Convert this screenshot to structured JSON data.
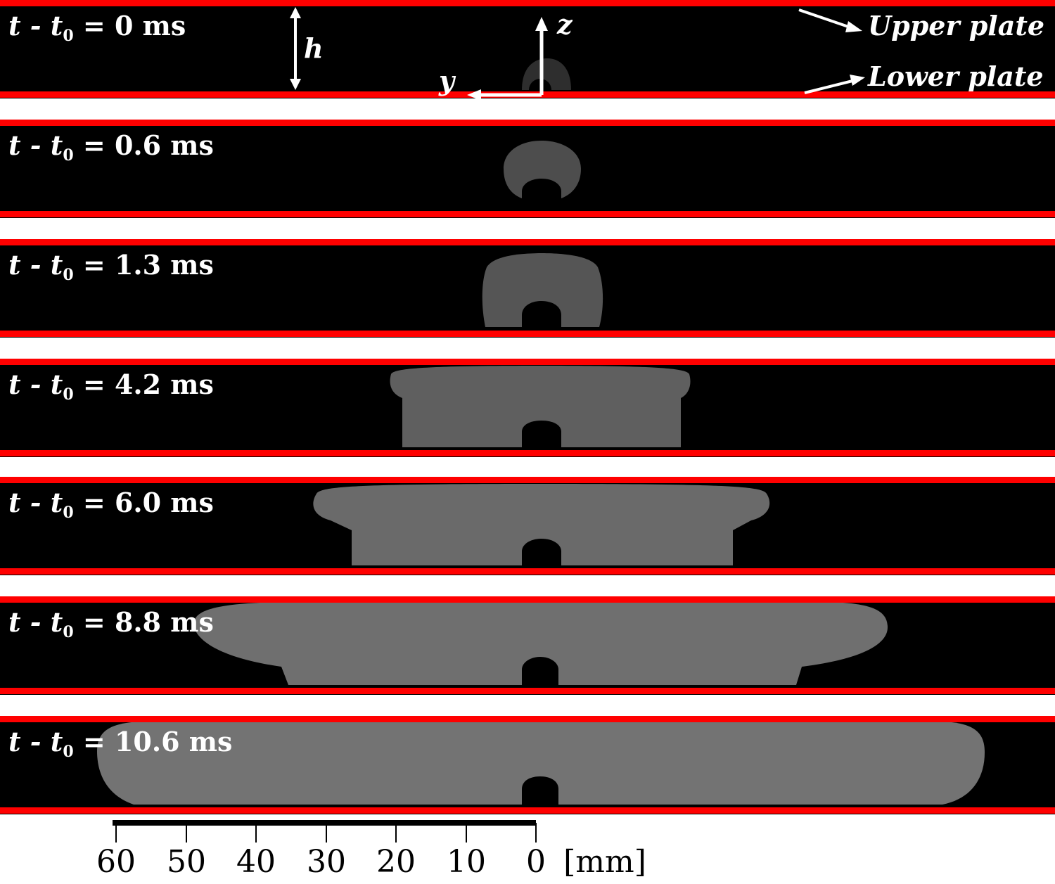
{
  "frames": [
    {
      "t_label": "t - t",
      "sub": "0",
      "value": "= 0 ms"
    },
    {
      "t_label": "t - t",
      "sub": "0",
      "value": "= 0.6 ms"
    },
    {
      "t_label": "t - t",
      "sub": "0",
      "value": "= 1.3 ms"
    },
    {
      "t_label": "t - t",
      "sub": "0",
      "value": "= 4.2 ms"
    },
    {
      "t_label": "t - t",
      "sub": "0",
      "value": "= 6.0 ms"
    },
    {
      "t_label": "t - t",
      "sub": "0",
      "value": "= 8.8 ms"
    },
    {
      "t_label": "t - t",
      "sub": "0",
      "value": "= 10.6 ms"
    }
  ],
  "annotations": {
    "h": "h",
    "z": "z",
    "y": "y",
    "upper_plate": "Upper plate",
    "lower_plate": "Lower plate"
  },
  "scale": {
    "ticks": [
      "60",
      "50",
      "40",
      "30",
      "20",
      "10",
      "0"
    ],
    "unit": "[mm]"
  },
  "colors": {
    "plate": "#ff0000",
    "background": "#000000",
    "liquid": "#6a6a6a"
  }
}
